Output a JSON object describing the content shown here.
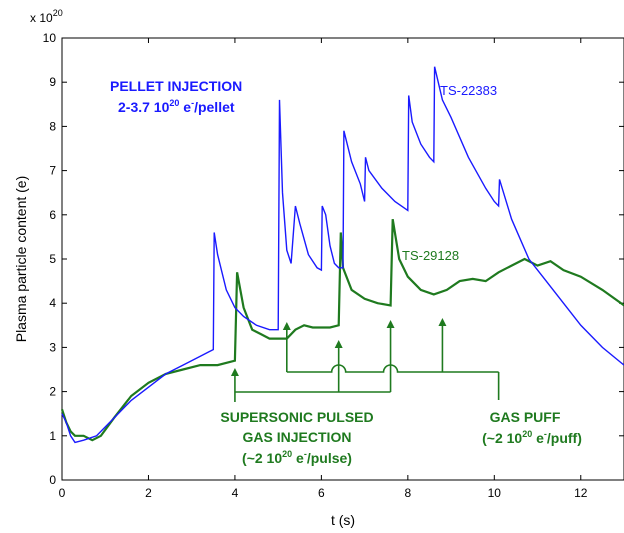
{
  "chart_data": {
    "type": "line",
    "multiplier_label": "x 10",
    "multiplier_exp": "20",
    "xlabel": "t (s)",
    "ylabel": "Plasma particle content (e)",
    "xlim": [
      0,
      13
    ],
    "ylim": [
      0,
      10
    ],
    "xticks": [
      "0",
      "2",
      "4",
      "6",
      "8",
      "10",
      "12"
    ],
    "yticks": [
      "0",
      "1",
      "2",
      "3",
      "4",
      "5",
      "6",
      "7",
      "8",
      "9",
      "10"
    ],
    "grid": false,
    "series": [
      {
        "name": "TS-22383",
        "color": "#1a1aff",
        "x": [
          0,
          0.1,
          0.2,
          0.3,
          0.5,
          0.8,
          1.2,
          1.6,
          2.0,
          2.4,
          2.8,
          3.2,
          3.4,
          3.5,
          3.52,
          3.6,
          3.8,
          4.0,
          4.2,
          4.5,
          4.8,
          5.0,
          5.03,
          5.1,
          5.2,
          5.3,
          5.4,
          5.5,
          5.7,
          5.9,
          6.0,
          6.02,
          6.1,
          6.2,
          6.3,
          6.4,
          6.5,
          6.52,
          6.7,
          6.9,
          7.0,
          7.02,
          7.1,
          7.4,
          7.7,
          8.0,
          8.02,
          8.1,
          8.3,
          8.5,
          8.6,
          8.62,
          8.8,
          9.0,
          9.4,
          9.8,
          10.0,
          10.1,
          10.12,
          10.4,
          10.8,
          11.2,
          11.6,
          12.0,
          12.5,
          13.0
        ],
        "y": [
          1.5,
          1.3,
          1.0,
          0.85,
          0.9,
          1.0,
          1.4,
          1.8,
          2.1,
          2.4,
          2.6,
          2.8,
          2.9,
          2.95,
          5.6,
          5.1,
          4.3,
          3.9,
          3.7,
          3.5,
          3.4,
          3.4,
          8.6,
          6.5,
          5.2,
          4.9,
          6.2,
          5.8,
          5.1,
          4.8,
          4.75,
          6.2,
          6.0,
          5.3,
          4.9,
          4.8,
          4.8,
          7.9,
          7.2,
          6.7,
          6.3,
          7.3,
          7.0,
          6.6,
          6.3,
          6.1,
          8.7,
          8.1,
          7.6,
          7.3,
          7.2,
          9.35,
          8.6,
          8.2,
          7.3,
          6.6,
          6.3,
          6.2,
          6.8,
          5.9,
          5.0,
          4.5,
          4.0,
          3.5,
          3.0,
          2.6
        ]
      },
      {
        "name": "TS-29128",
        "color": "#1f7a1f",
        "x": [
          0,
          0.1,
          0.2,
          0.3,
          0.5,
          0.7,
          0.9,
          1.2,
          1.6,
          2.0,
          2.4,
          2.8,
          3.2,
          3.6,
          4.0,
          4.05,
          4.2,
          4.4,
          4.6,
          4.8,
          5.0,
          5.2,
          5.4,
          5.6,
          5.8,
          6.0,
          6.2,
          6.4,
          6.45,
          6.5,
          6.7,
          7.0,
          7.3,
          7.6,
          7.65,
          7.8,
          8.0,
          8.3,
          8.6,
          8.9,
          9.2,
          9.5,
          9.8,
          10.1,
          10.4,
          10.7,
          11.0,
          11.3,
          11.6,
          12.0,
          12.5,
          13.0
        ],
        "y": [
          1.6,
          1.3,
          1.1,
          1.0,
          1.0,
          0.9,
          1.0,
          1.4,
          1.9,
          2.2,
          2.4,
          2.5,
          2.6,
          2.6,
          2.7,
          4.7,
          3.9,
          3.4,
          3.3,
          3.2,
          3.2,
          3.2,
          3.4,
          3.5,
          3.45,
          3.45,
          3.45,
          3.5,
          5.6,
          4.8,
          4.3,
          4.1,
          4.0,
          3.95,
          5.9,
          5.0,
          4.6,
          4.3,
          4.2,
          4.3,
          4.5,
          4.55,
          4.5,
          4.7,
          4.85,
          5.0,
          4.85,
          4.95,
          4.75,
          4.6,
          4.3,
          3.95
        ]
      }
    ],
    "annotations": {
      "pellet_line1": "PELLET INJECTION",
      "pellet_line2a": "2-3.7 10",
      "pellet_line2_exp": "20",
      "pellet_line2b": " e",
      "pellet_line2_exp2": "-",
      "pellet_line2c": "/pellet",
      "ts_blue": "TS-22383",
      "ts_green": "TS-29128",
      "supersonic_line1": "SUPERSONIC PULSED",
      "supersonic_line2": "GAS INJECTION",
      "supersonic_line3a": "(~2 10",
      "supersonic_line3_exp": "20",
      "supersonic_line3b": " e",
      "supersonic_line3_exp2": "-",
      "supersonic_line3c": "/pulse)",
      "gaspuff_line1": "GAS PUFF",
      "gaspuff_line2a": "(~2 10",
      "gaspuff_line2_exp": "20",
      "gaspuff_line2b": " e",
      "gaspuff_line2_exp2": "-",
      "gaspuff_line2c": "/puff)",
      "supersonic_arrow_times": [
        4.0,
        6.4,
        7.6
      ],
      "gaspuff_arrow_times": [
        5.2,
        8.8
      ]
    }
  }
}
